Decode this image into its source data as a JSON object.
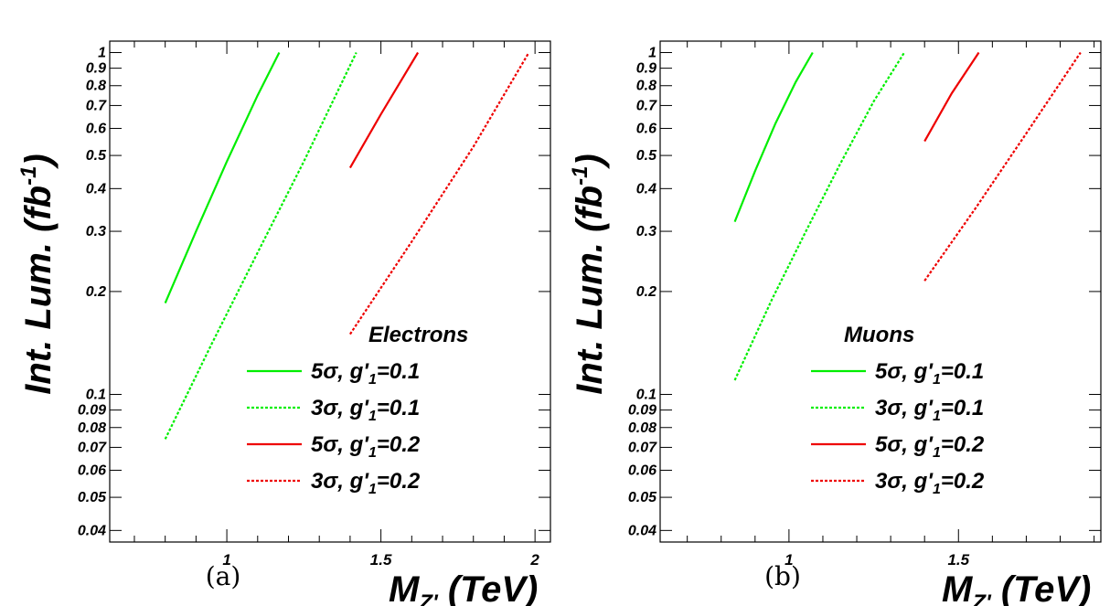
{
  "chart_data": [
    {
      "type": "line",
      "panel_label": "(a)",
      "title": "Electrons",
      "xlabel": "M_Z' (TeV)",
      "ylabel": "Int. Lum. (fb^-1)",
      "xlim": [
        0.62,
        2.05
      ],
      "ylim": [
        0.037,
        1.08
      ],
      "yscale": "log",
      "x_ticks": [
        {
          "value": 1,
          "label": "1"
        },
        {
          "value": 1.5,
          "label": "1.5"
        },
        {
          "value": 2,
          "label": "2"
        }
      ],
      "y_ticks": [
        {
          "value": 0.04,
          "label": "0.04"
        },
        {
          "value": 0.05,
          "label": "0.05"
        },
        {
          "value": 0.06,
          "label": "0.06"
        },
        {
          "value": 0.07,
          "label": "0.07"
        },
        {
          "value": 0.08,
          "label": "0.08"
        },
        {
          "value": 0.09,
          "label": "0.09"
        },
        {
          "value": 0.1,
          "label": "0.1"
        },
        {
          "value": 0.2,
          "label": "0.2"
        },
        {
          "value": 0.3,
          "label": "0.3"
        },
        {
          "value": 0.4,
          "label": "0.4"
        },
        {
          "value": 0.5,
          "label": "0.5"
        },
        {
          "value": 0.6,
          "label": "0.6"
        },
        {
          "value": 0.7,
          "label": "0.7"
        },
        {
          "value": 0.8,
          "label": "0.8"
        },
        {
          "value": 0.9,
          "label": "0.9"
        },
        {
          "value": 1,
          "label": "1"
        }
      ],
      "legend_position": "bottom-right",
      "series": [
        {
          "name": "5σ, g'1=0.1",
          "color": "#00ee00",
          "style": "solid",
          "x": [
            0.8,
            0.9,
            1.0,
            1.1,
            1.17
          ],
          "y": [
            0.185,
            0.3,
            0.48,
            0.75,
            1.0
          ]
        },
        {
          "name": "3σ, g'1=0.1",
          "color": "#00ee00",
          "style": "dotted",
          "x": [
            0.8,
            0.95,
            1.1,
            1.25,
            1.42
          ],
          "y": [
            0.074,
            0.14,
            0.26,
            0.48,
            1.0
          ]
        },
        {
          "name": "5σ, g'1=0.2",
          "color": "#ee0000",
          "style": "solid",
          "x": [
            1.4,
            1.5,
            1.62
          ],
          "y": [
            0.46,
            0.66,
            1.0
          ]
        },
        {
          "name": "3σ, g'1=0.2",
          "color": "#ee0000",
          "style": "dotted",
          "x": [
            1.4,
            1.6,
            1.8,
            1.98
          ],
          "y": [
            0.15,
            0.28,
            0.53,
            1.0
          ]
        }
      ]
    },
    {
      "type": "line",
      "panel_label": "(b)",
      "title": "Muons",
      "xlabel": "M_Z' (TeV)",
      "ylabel": "Int. Lum. (fb^-1)",
      "xlim": [
        0.62,
        1.92
      ],
      "ylim": [
        0.037,
        1.08
      ],
      "yscale": "log",
      "x_ticks": [
        {
          "value": 1,
          "label": "1"
        },
        {
          "value": 1.5,
          "label": "1.5"
        }
      ],
      "y_ticks": [
        {
          "value": 0.04,
          "label": "0.04"
        },
        {
          "value": 0.05,
          "label": "0.05"
        },
        {
          "value": 0.06,
          "label": "0.06"
        },
        {
          "value": 0.07,
          "label": "0.07"
        },
        {
          "value": 0.08,
          "label": "0.08"
        },
        {
          "value": 0.09,
          "label": "0.09"
        },
        {
          "value": 0.1,
          "label": "0.1"
        },
        {
          "value": 0.2,
          "label": "0.2"
        },
        {
          "value": 0.3,
          "label": "0.3"
        },
        {
          "value": 0.4,
          "label": "0.4"
        },
        {
          "value": 0.5,
          "label": "0.5"
        },
        {
          "value": 0.6,
          "label": "0.6"
        },
        {
          "value": 0.7,
          "label": "0.7"
        },
        {
          "value": 0.8,
          "label": "0.8"
        },
        {
          "value": 0.9,
          "label": "0.9"
        },
        {
          "value": 1,
          "label": "1"
        }
      ],
      "legend_position": "bottom-right",
      "series": [
        {
          "name": "5σ, g'1=0.1",
          "color": "#00ee00",
          "style": "solid",
          "x": [
            0.84,
            0.9,
            0.96,
            1.02,
            1.07
          ],
          "y": [
            0.32,
            0.45,
            0.62,
            0.82,
            1.0
          ]
        },
        {
          "name": "3σ, g'1=0.1",
          "color": "#00ee00",
          "style": "dotted",
          "x": [
            0.84,
            0.95,
            1.05,
            1.15,
            1.25,
            1.34
          ],
          "y": [
            0.11,
            0.19,
            0.3,
            0.47,
            0.72,
            1.0
          ]
        },
        {
          "name": "5σ, g'1=0.2",
          "color": "#ee0000",
          "style": "solid",
          "x": [
            1.4,
            1.48,
            1.56
          ],
          "y": [
            0.55,
            0.76,
            1.0
          ]
        },
        {
          "name": "3σ, g'1=0.2",
          "color": "#ee0000",
          "style": "dotted",
          "x": [
            1.4,
            1.55,
            1.7,
            1.86
          ],
          "y": [
            0.215,
            0.35,
            0.58,
            1.0
          ]
        }
      ]
    }
  ]
}
